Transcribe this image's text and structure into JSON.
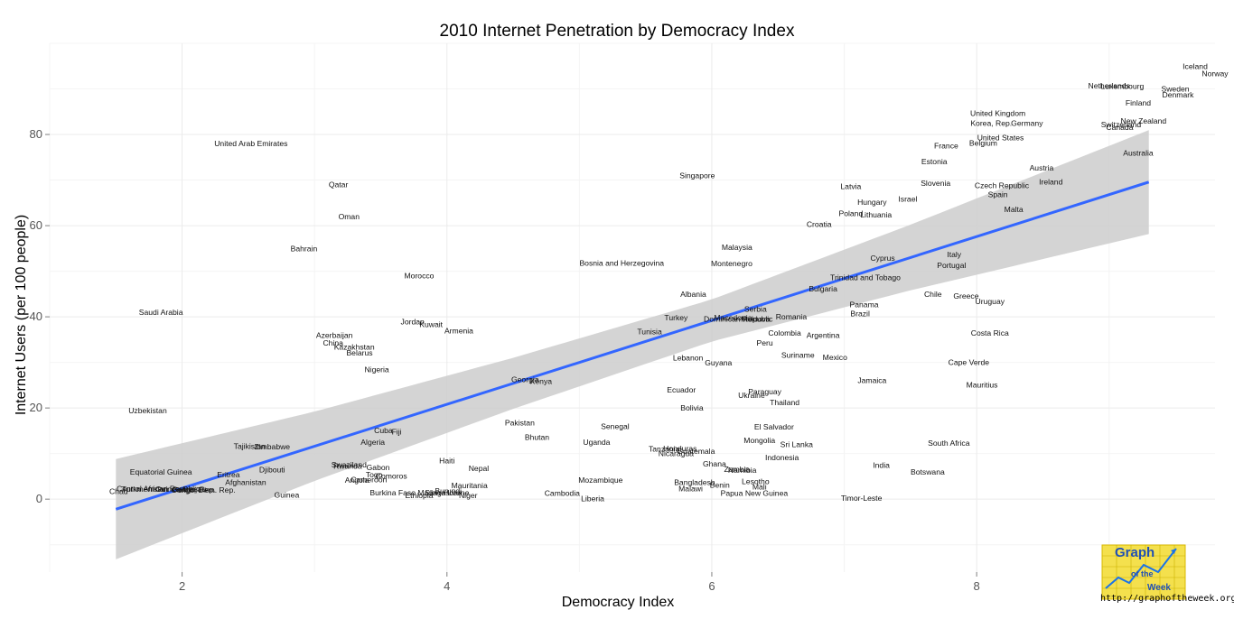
{
  "chart_data": {
    "type": "scatter",
    "title": "2010 Internet Penetration by Democracy Index",
    "xlabel": "Democracy Index",
    "ylabel": "Internet Users (per 100 people)",
    "xlim": [
      1.0,
      9.8
    ],
    "ylim": [
      -16,
      100
    ],
    "x_ticks": [
      2,
      4,
      6,
      8
    ],
    "y_ticks": [
      0,
      20,
      40,
      60,
      80
    ],
    "grid": true,
    "trend": {
      "type": "linear",
      "color": "#3366ff",
      "band_color": "#cccccc",
      "x_range": [
        1.5,
        9.3
      ],
      "start": 1.5,
      "slope": 9.2,
      "intercept": -16.0,
      "band": [
        [
          1.5,
          -2.9,
          11.0
        ],
        [
          3.0,
          3.2,
          7.6
        ],
        [
          4.5,
          2.6,
          5.6
        ],
        [
          6.0,
          2.3,
          4.6
        ],
        [
          7.5,
          3.5,
          7.2
        ],
        [
          9.3,
          5.6,
          11.4
        ]
      ]
    },
    "points": [
      {
        "label": "Iceland",
        "x": 9.65,
        "y": 95.0
      },
      {
        "label": "Norway",
        "x": 9.8,
        "y": 93.4
      },
      {
        "label": "Sweden",
        "x": 9.5,
        "y": 90.0
      },
      {
        "label": "Denmark",
        "x": 9.52,
        "y": 88.7
      },
      {
        "label": "Luxembourg",
        "x": 9.1,
        "y": 90.6
      },
      {
        "label": "Netherlands",
        "x": 9.0,
        "y": 90.7
      },
      {
        "label": "Finland",
        "x": 9.22,
        "y": 86.9
      },
      {
        "label": "New Zealand",
        "x": 9.26,
        "y": 83.0
      },
      {
        "label": "Switzerland",
        "x": 9.09,
        "y": 82.2
      },
      {
        "label": "Canada",
        "x": 9.08,
        "y": 81.6
      },
      {
        "label": "Australia",
        "x": 9.22,
        "y": 75.9
      },
      {
        "label": "United Kingdom",
        "x": 8.16,
        "y": 84.7
      },
      {
        "label": "Korea, Rep.",
        "x": 8.11,
        "y": 82.5
      },
      {
        "label": "Germany",
        "x": 8.38,
        "y": 82.5
      },
      {
        "label": "United States",
        "x": 8.18,
        "y": 79.3
      },
      {
        "label": "Belgium",
        "x": 8.05,
        "y": 78.1
      },
      {
        "label": "France",
        "x": 7.77,
        "y": 77.5
      },
      {
        "label": "Estonia",
        "x": 7.68,
        "y": 74.1
      },
      {
        "label": "Austria",
        "x": 8.49,
        "y": 72.7
      },
      {
        "label": "Ireland",
        "x": 8.56,
        "y": 69.6
      },
      {
        "label": "Slovenia",
        "x": 7.69,
        "y": 69.3
      },
      {
        "label": "Czech Republic",
        "x": 8.19,
        "y": 68.8
      },
      {
        "label": "Spain",
        "x": 8.16,
        "y": 66.8
      },
      {
        "label": "Israel",
        "x": 7.48,
        "y": 65.9
      },
      {
        "label": "Malta",
        "x": 8.28,
        "y": 63.6
      },
      {
        "label": "Latvia",
        "x": 7.05,
        "y": 68.6
      },
      {
        "label": "Hungary",
        "x": 7.21,
        "y": 65.2
      },
      {
        "label": "Poland",
        "x": 7.05,
        "y": 62.7
      },
      {
        "label": "Lithuania",
        "x": 7.24,
        "y": 62.4
      },
      {
        "label": "Croatia",
        "x": 6.81,
        "y": 60.3
      },
      {
        "label": "Singapore",
        "x": 5.89,
        "y": 71.0
      },
      {
        "label": "United Arab Emirates",
        "x": 2.52,
        "y": 78.0
      },
      {
        "label": "Qatar",
        "x": 3.18,
        "y": 69.0
      },
      {
        "label": "Oman",
        "x": 3.26,
        "y": 62.0
      },
      {
        "label": "Bahrain",
        "x": 2.92,
        "y": 55.0
      },
      {
        "label": "Malaysia",
        "x": 6.19,
        "y": 55.3
      },
      {
        "label": "Bosnia and Herzegovina",
        "x": 5.32,
        "y": 51.8
      },
      {
        "label": "Montenegro",
        "x": 6.15,
        "y": 51.7
      },
      {
        "label": "Italy",
        "x": 7.83,
        "y": 53.7
      },
      {
        "label": "Portugal",
        "x": 7.81,
        "y": 51.3
      },
      {
        "label": "Cyprus",
        "x": 7.29,
        "y": 52.9
      },
      {
        "label": "Trinidad and Tobago",
        "x": 7.16,
        "y": 48.6
      },
      {
        "label": "Morocco",
        "x": 3.79,
        "y": 49.0
      },
      {
        "label": "Bulgaria",
        "x": 6.84,
        "y": 46.2
      },
      {
        "label": "Chile",
        "x": 7.67,
        "y": 45.0
      },
      {
        "label": "Greece",
        "x": 7.92,
        "y": 44.6
      },
      {
        "label": "Uruguay",
        "x": 8.1,
        "y": 43.4
      },
      {
        "label": "Albania",
        "x": 5.86,
        "y": 45.0
      },
      {
        "label": "Serbia",
        "x": 6.33,
        "y": 41.7
      },
      {
        "label": "Panama",
        "x": 7.15,
        "y": 42.7
      },
      {
        "label": "Brazil",
        "x": 7.12,
        "y": 40.7
      },
      {
        "label": "Saudi Arabia",
        "x": 1.84,
        "y": 41.0
      },
      {
        "label": "Turkey",
        "x": 5.73,
        "y": 39.8
      },
      {
        "label": "Dominican Republic",
        "x": 6.2,
        "y": 39.5
      },
      {
        "label": "Macedonia",
        "x": 6.16,
        "y": 39.8
      },
      {
        "label": "Moldova",
        "x": 6.33,
        "y": 39.5
      },
      {
        "label": "Romania",
        "x": 6.6,
        "y": 40.0
      },
      {
        "label": "Jordan",
        "x": 3.74,
        "y": 38.9
      },
      {
        "label": "Kuwait",
        "x": 3.88,
        "y": 38.3
      },
      {
        "label": "Armenia",
        "x": 4.09,
        "y": 37.0
      },
      {
        "label": "Azerbaijan",
        "x": 3.15,
        "y": 36.0
      },
      {
        "label": "Tunisia",
        "x": 5.53,
        "y": 36.8
      },
      {
        "label": "Colombia",
        "x": 6.55,
        "y": 36.5
      },
      {
        "label": "Argentina",
        "x": 6.84,
        "y": 36.0
      },
      {
        "label": "Costa Rica",
        "x": 8.1,
        "y": 36.5
      },
      {
        "label": "China",
        "x": 3.14,
        "y": 34.3
      },
      {
        "label": "Kazakhstan",
        "x": 3.3,
        "y": 33.4
      },
      {
        "label": "Peru",
        "x": 6.4,
        "y": 34.3
      },
      {
        "label": "Belarus",
        "x": 3.34,
        "y": 32.1
      },
      {
        "label": "Suriname",
        "x": 6.65,
        "y": 31.6
      },
      {
        "label": "Mexico",
        "x": 6.93,
        "y": 31.1
      },
      {
        "label": "Lebanon",
        "x": 5.82,
        "y": 31.0
      },
      {
        "label": "Guyana",
        "x": 6.05,
        "y": 29.9
      },
      {
        "label": "Cape Verde",
        "x": 7.94,
        "y": 30.0
      },
      {
        "label": "Nigeria",
        "x": 3.47,
        "y": 28.4
      },
      {
        "label": "Jamaica",
        "x": 7.21,
        "y": 26.1
      },
      {
        "label": "Mauritius",
        "x": 8.04,
        "y": 25.1
      },
      {
        "label": "Georgia",
        "x": 4.59,
        "y": 26.3
      },
      {
        "label": "Kenya",
        "x": 4.71,
        "y": 25.9
      },
      {
        "label": "Ecuador",
        "x": 5.77,
        "y": 24.0
      },
      {
        "label": "Ukraine",
        "x": 6.3,
        "y": 22.8
      },
      {
        "label": "Paraguay",
        "x": 6.4,
        "y": 23.6
      },
      {
        "label": "Thailand",
        "x": 6.55,
        "y": 21.2
      },
      {
        "label": "Bolivia",
        "x": 5.85,
        "y": 20.0
      },
      {
        "label": "Uzbekistan",
        "x": 1.74,
        "y": 19.4
      },
      {
        "label": "Pakistan",
        "x": 4.55,
        "y": 16.8
      },
      {
        "label": "Senegal",
        "x": 5.27,
        "y": 16.0
      },
      {
        "label": "El Salvador",
        "x": 6.47,
        "y": 15.9
      },
      {
        "label": "Bhutan",
        "x": 4.68,
        "y": 13.6
      },
      {
        "label": "Mongolia",
        "x": 6.36,
        "y": 12.9
      },
      {
        "label": "Sri Lanka",
        "x": 6.64,
        "y": 12.0
      },
      {
        "label": "South Africa",
        "x": 7.79,
        "y": 12.3
      },
      {
        "label": "Fiji",
        "x": 3.62,
        "y": 14.8
      },
      {
        "label": "Cuba",
        "x": 3.52,
        "y": 15.1
      },
      {
        "label": "Algeria",
        "x": 3.44,
        "y": 12.5
      },
      {
        "label": "Uganda",
        "x": 5.13,
        "y": 12.5
      },
      {
        "label": "Tajikistan",
        "x": 2.51,
        "y": 11.6
      },
      {
        "label": "Zimbabwe",
        "x": 2.68,
        "y": 11.5
      },
      {
        "label": "Honduras",
        "x": 5.76,
        "y": 11.1
      },
      {
        "label": "Tanzania",
        "x": 5.64,
        "y": 11.0
      },
      {
        "label": "Guatemala",
        "x": 5.88,
        "y": 10.5
      },
      {
        "label": "Nicaragua",
        "x": 5.73,
        "y": 10.0
      },
      {
        "label": "Indonesia",
        "x": 6.53,
        "y": 9.1
      },
      {
        "label": "Haiti",
        "x": 4.0,
        "y": 8.4
      },
      {
        "label": "Ghana",
        "x": 6.02,
        "y": 7.8
      },
      {
        "label": "India",
        "x": 7.28,
        "y": 7.5
      },
      {
        "label": "Swaziland",
        "x": 3.26,
        "y": 7.6
      },
      {
        "label": "Rwanda",
        "x": 3.25,
        "y": 7.3
      },
      {
        "label": "Gabon",
        "x": 3.48,
        "y": 7.0
      },
      {
        "label": "Nepal",
        "x": 4.24,
        "y": 6.8
      },
      {
        "label": "Zambia",
        "x": 6.19,
        "y": 6.6
      },
      {
        "label": "Namibia",
        "x": 6.23,
        "y": 6.4
      },
      {
        "label": "Djibouti",
        "x": 2.68,
        "y": 6.5
      },
      {
        "label": "Botswana",
        "x": 7.63,
        "y": 6.0
      },
      {
        "label": "Equatorial Guinea",
        "x": 1.84,
        "y": 6.0
      },
      {
        "label": "Eritrea",
        "x": 2.35,
        "y": 5.4
      },
      {
        "label": "Togo",
        "x": 3.45,
        "y": 5.4
      },
      {
        "label": "Comoros",
        "x": 3.58,
        "y": 5.1
      },
      {
        "label": "Afghanistan",
        "x": 2.48,
        "y": 3.7
      },
      {
        "label": "Mozambique",
        "x": 5.16,
        "y": 4.2
      },
      {
        "label": "Angola",
        "x": 3.32,
        "y": 4.2
      },
      {
        "label": "Cameroon",
        "x": 3.41,
        "y": 4.3
      },
      {
        "label": "Lesotho",
        "x": 6.33,
        "y": 3.9
      },
      {
        "label": "Bangladesh",
        "x": 5.87,
        "y": 3.7
      },
      {
        "label": "Mauritania",
        "x": 4.17,
        "y": 3.0
      },
      {
        "label": "Benin",
        "x": 6.06,
        "y": 3.1
      },
      {
        "label": "Mali",
        "x": 6.36,
        "y": 2.7
      },
      {
        "label": "Malawi",
        "x": 5.84,
        "y": 2.3
      },
      {
        "label": "Central African Republic",
        "x": 1.82,
        "y": 2.3
      },
      {
        "label": "Turkmenistan",
        "x": 1.72,
        "y": 2.2
      },
      {
        "label": "Guinea-Bissau",
        "x": 1.99,
        "y": 2.2
      },
      {
        "label": "Congo, Rep.",
        "x": 2.09,
        "y": 2.1
      },
      {
        "label": "Congo, Dem. Rep.",
        "x": 2.16,
        "y": 2.0
      },
      {
        "label": "Chad",
        "x": 1.52,
        "y": 1.7
      },
      {
        "label": "Burkina Faso",
        "x": 3.59,
        "y": 1.4
      },
      {
        "label": "Madagascar",
        "x": 3.94,
        "y": 1.4
      },
      {
        "label": "Burundi",
        "x": 4.01,
        "y": 1.8
      },
      {
        "label": "Sierra Leone",
        "x": 4.0,
        "y": 1.4
      },
      {
        "label": "Ethiopia",
        "x": 3.79,
        "y": 0.8
      },
      {
        "label": "Niger",
        "x": 4.16,
        "y": 0.8
      },
      {
        "label": "Guinea",
        "x": 2.79,
        "y": 0.9
      },
      {
        "label": "Cambodia",
        "x": 4.87,
        "y": 1.3
      },
      {
        "label": "Papua New Guinea",
        "x": 6.32,
        "y": 1.3
      },
      {
        "label": "Liberia",
        "x": 5.1,
        "y": 0.1
      },
      {
        "label": "Timor-Leste",
        "x": 7.13,
        "y": 0.2
      }
    ]
  },
  "watermark": {
    "logo_text_top": "Graph",
    "logo_text_mid": "of the",
    "logo_text_bottom": "Week",
    "url": "http://graphoftheweek.org/"
  }
}
